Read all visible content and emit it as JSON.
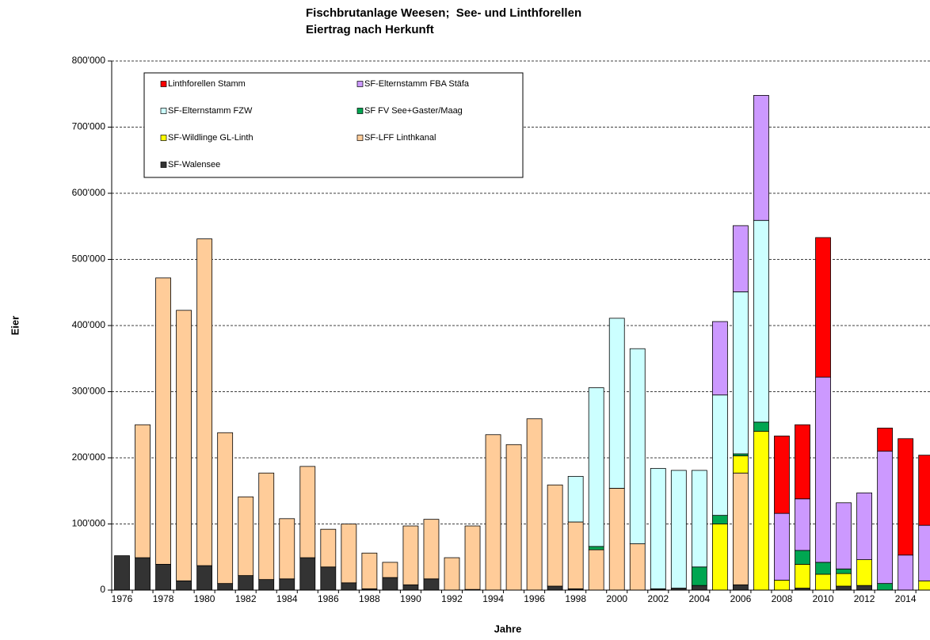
{
  "chart_data": {
    "type": "stacked_bar",
    "title": "Fischbrutanlage Weesen;  See- und Linthforellen",
    "subtitle": "Eiertrag nach Herkunft",
    "x_label": "Jahre",
    "y_label": "Eier",
    "categories": [
      "1976",
      null,
      "1978",
      null,
      "1980",
      null,
      "1982",
      null,
      "1984",
      null,
      "1986",
      null,
      "1988",
      null,
      "1990",
      null,
      "1992",
      null,
      "1994",
      null,
      "1996",
      null,
      "1998",
      null,
      "2000",
      null,
      "2002",
      null,
      "2004",
      null,
      "2006",
      null,
      "2008",
      null,
      "2010",
      null,
      "2012",
      null,
      "2014",
      null
    ],
    "ylim": [
      0,
      800000
    ],
    "yticks": [
      0,
      {
        "value": 100000,
        "label": "100'000"
      },
      {
        "value": 200000,
        "label": "200'000"
      },
      {
        "value": 300000,
        "label": "300'000"
      },
      {
        "value": 400000,
        "label": "400'000"
      },
      {
        "value": 500000,
        "label": "500'000"
      },
      {
        "value": 600000,
        "label": "600'000"
      },
      {
        "value": 700000,
        "label": "700'000"
      },
      {
        "value": 800000,
        "label": "800'000"
      }
    ],
    "grid": true,
    "legend": "top-left",
    "series": [
      {
        "name": "Linthforellen Stamm",
        "color": "#ff0000",
        "values": [
          0,
          0,
          0,
          0,
          0,
          0,
          0,
          0,
          0,
          0,
          0,
          0,
          0,
          0,
          0,
          0,
          0,
          0,
          0,
          0,
          0,
          0,
          0,
          0,
          0,
          0,
          0,
          0,
          0,
          0,
          0,
          0,
          117000,
          112000,
          211000,
          0,
          0,
          35000,
          176000,
          106000
        ]
      },
      {
        "name": "SF-Elternstamm FBA Stäfa",
        "color": "#cc99ff",
        "values": [
          0,
          0,
          0,
          0,
          0,
          0,
          0,
          0,
          0,
          0,
          0,
          0,
          0,
          0,
          0,
          0,
          0,
          0,
          0,
          0,
          0,
          0,
          0,
          0,
          0,
          0,
          0,
          0,
          0,
          111000,
          100000,
          189000,
          101000,
          78000,
          280000,
          100000,
          101000,
          200000,
          53000,
          84000
        ]
      },
      {
        "name": "SF-Elternstamm FZW",
        "color": "#ccffff",
        "values": [
          0,
          0,
          0,
          0,
          0,
          0,
          0,
          0,
          0,
          0,
          0,
          0,
          0,
          0,
          0,
          0,
          0,
          0,
          0,
          0,
          0,
          0,
          69000,
          240000,
          257000,
          295000,
          182000,
          178000,
          146000,
          182000,
          245000,
          305000,
          0,
          0,
          0,
          0,
          0,
          0,
          0,
          0
        ]
      },
      {
        "name": "SF FV See+Gaster/Maag",
        "color": "#00a651",
        "values": [
          0,
          0,
          0,
          0,
          0,
          0,
          0,
          0,
          0,
          0,
          0,
          0,
          0,
          0,
          0,
          0,
          0,
          0,
          0,
          0,
          0,
          0,
          0,
          5000,
          0,
          0,
          0,
          0,
          28000,
          13000,
          3000,
          14000,
          0,
          21000,
          18000,
          7000,
          0,
          10000,
          0,
          0
        ]
      },
      {
        "name": "SF-Wildlinge GL-Linth",
        "color": "#ffff00",
        "values": [
          0,
          0,
          0,
          0,
          0,
          0,
          0,
          0,
          0,
          0,
          0,
          0,
          0,
          0,
          0,
          0,
          0,
          0,
          0,
          0,
          0,
          0,
          0,
          0,
          0,
          0,
          0,
          0,
          0,
          100000,
          26000,
          240000,
          15000,
          36000,
          24000,
          19000,
          39000,
          0,
          0,
          14000
        ]
      },
      {
        "name": "SF-LFF Linthkanal",
        "color": "#ffcc99",
        "values": [
          0,
          201000,
          433000,
          409000,
          494000,
          228000,
          119000,
          161000,
          91000,
          138000,
          57000,
          89000,
          54000,
          23000,
          89000,
          90000,
          49000,
          96000,
          235000,
          220000,
          259000,
          153000,
          101000,
          61000,
          154000,
          70000,
          0,
          0,
          0,
          0,
          169000,
          0,
          0,
          0,
          0,
          0,
          0,
          0,
          0,
          0
        ]
      },
      {
        "name": "SF-Walensee",
        "color": "#333333",
        "values": [
          52000,
          49000,
          39000,
          14000,
          37000,
          10000,
          22000,
          16000,
          17000,
          49000,
          35000,
          11000,
          2000,
          19000,
          8000,
          17000,
          0,
          1000,
          0,
          0,
          0,
          6000,
          2000,
          0,
          0,
          0,
          2000,
          3000,
          7000,
          0,
          8000,
          0,
          0,
          3000,
          0,
          6000,
          7000,
          0,
          0,
          0
        ]
      }
    ]
  }
}
